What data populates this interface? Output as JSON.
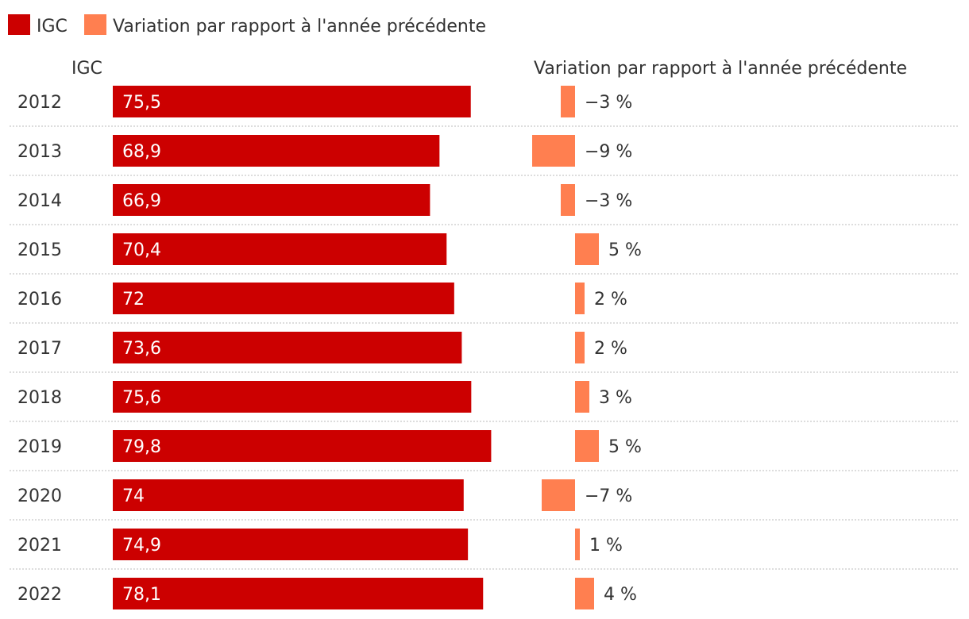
{
  "chart_data": {
    "type": "bar",
    "legend": [
      {
        "name": "IGC",
        "color": "#cc0000"
      },
      {
        "name": "Variation par rapport à l'année précédente",
        "color": "#ff7f50"
      }
    ],
    "headers": {
      "igc": "IGC",
      "variation": "Variation par rapport à l'année précédente"
    },
    "rows": [
      {
        "year": "2012",
        "igc": 75.5,
        "igc_label": "75,5",
        "variation": -3,
        "variation_label": "−3 %"
      },
      {
        "year": "2013",
        "igc": 68.9,
        "igc_label": "68,9",
        "variation": -9,
        "variation_label": "−9 %"
      },
      {
        "year": "2014",
        "igc": 66.9,
        "igc_label": "66,9",
        "variation": -3,
        "variation_label": "−3 %"
      },
      {
        "year": "2015",
        "igc": 70.4,
        "igc_label": "70,4",
        "variation": 5,
        "variation_label": "5 %"
      },
      {
        "year": "2016",
        "igc": 72,
        "igc_label": "72",
        "variation": 2,
        "variation_label": "2 %"
      },
      {
        "year": "2017",
        "igc": 73.6,
        "igc_label": "73,6",
        "variation": 2,
        "variation_label": "2 %"
      },
      {
        "year": "2018",
        "igc": 75.6,
        "igc_label": "75,6",
        "variation": 3,
        "variation_label": "3 %"
      },
      {
        "year": "2019",
        "igc": 79.8,
        "igc_label": "79,8",
        "variation": 5,
        "variation_label": "5 %"
      },
      {
        "year": "2020",
        "igc": 74,
        "igc_label": "74",
        "variation": -7,
        "variation_label": "−7 %"
      },
      {
        "year": "2021",
        "igc": 74.9,
        "igc_label": "74,9",
        "variation": 1,
        "variation_label": "1 %"
      },
      {
        "year": "2022",
        "igc": 78.1,
        "igc_label": "78,1",
        "variation": 4,
        "variation_label": "4 %"
      }
    ],
    "igc_range": [
      0,
      80
    ],
    "variation_range": [
      -10,
      10
    ]
  }
}
